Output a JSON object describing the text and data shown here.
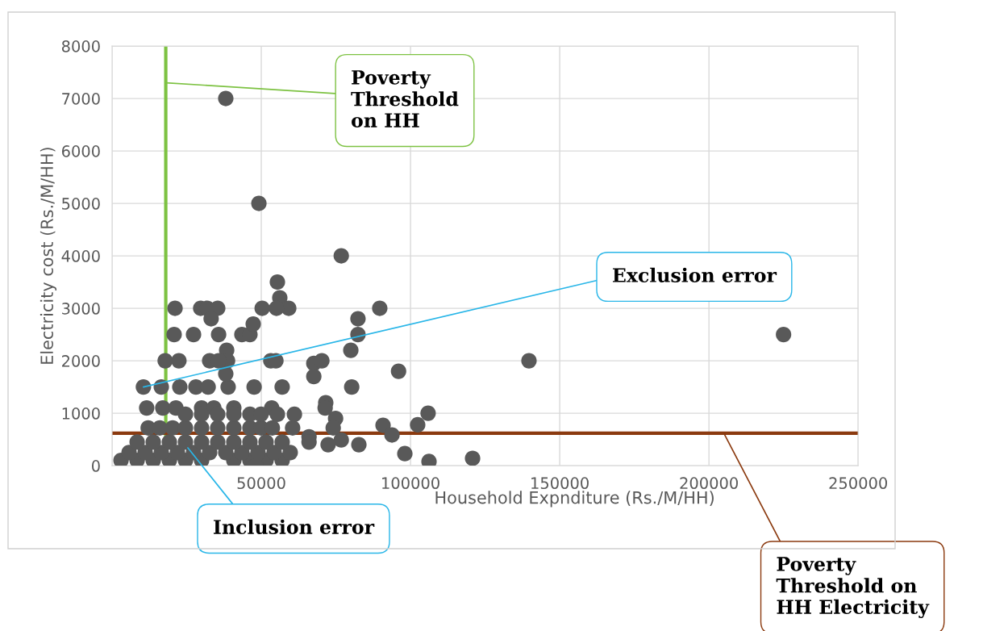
{
  "chart_data": {
    "type": "scatter",
    "xlabel": "Household Expnditure (Rs./M/HH)",
    "ylabel": "Electricity cost (Rs./M/HH)",
    "xlim": [
      0,
      250000
    ],
    "xticks": [
      {
        "value": 0,
        "label": null
      },
      50000,
      100000,
      150000,
      200000,
      250000
    ],
    "ylim": [
      0,
      8000
    ],
    "yticks": [
      0,
      1000,
      2000,
      3000,
      4000,
      5000,
      6000,
      7000,
      8000
    ],
    "grid": true,
    "legend": false,
    "marker": "circle",
    "series": [
      {
        "color": "#595959",
        "x": [
          38100,
          49200,
          76800,
          55400,
          56200,
          225000,
          139700,
          89700,
          82400,
          82400,
          80000,
          67600,
          70300,
          67600,
          96000,
          80300,
          71600,
          74900,
          90800,
          102400,
          105900,
          93800,
          82700,
          76800,
          72400,
          98100,
          106200,
          120800,
          66000,
          59200,
          50300,
          55100,
          43500,
          46200,
          47300,
          35700,
          29700,
          31900,
          35400,
          21100,
          33200,
          20800,
          27300,
          38400,
          38700,
          53200,
          54900,
          32700,
          35700,
          22400,
          17800,
          10500,
          16500,
          22700,
          28100,
          32200,
          38900,
          47600,
          57000,
          11600,
          17000,
          21400,
          30000,
          34100,
          40800,
          53500,
          71400,
          38100,
          3000,
          8400,
          13800,
          19200,
          24600,
          30000,
          40800,
          46200,
          51600,
          57000,
          5700,
          11100,
          16500,
          21900,
          27300,
          32700,
          38100,
          43500,
          48900,
          54300,
          59700,
          8400,
          13800,
          19200,
          24600,
          30000,
          35400,
          40800,
          46200,
          51600,
          57000,
          66000,
          12100,
          16000,
          20300,
          24600,
          30000,
          35400,
          40800,
          46200,
          49900,
          53700,
          60500,
          74100,
          24600,
          30000,
          35400,
          40800,
          46200,
          49900,
          55400,
          61100,
          48100
        ],
        "values": [
          7000,
          5000,
          4000,
          3500,
          3200,
          2500,
          2000,
          3000,
          2800,
          2500,
          2200,
          1950,
          2000,
          1700,
          1800,
          1500,
          1200,
          900,
          770,
          780,
          1000,
          585,
          400,
          490,
          400,
          230,
          80,
          140,
          550,
          3000,
          3000,
          3000,
          2500,
          2500,
          2700,
          2500,
          3000,
          3000,
          3000,
          3000,
          2800,
          2500,
          2500,
          2200,
          2000,
          2000,
          2000,
          2000,
          2000,
          2000,
          2000,
          1500,
          1500,
          1500,
          1500,
          1500,
          1500,
          1500,
          1500,
          1100,
          1100,
          1100,
          1100,
          1100,
          1100,
          1100,
          1100,
          1750,
          100,
          100,
          100,
          100,
          100,
          100,
          100,
          100,
          100,
          100,
          250,
          250,
          250,
          250,
          250,
          250,
          250,
          250,
          250,
          250,
          250,
          450,
          450,
          450,
          450,
          450,
          450,
          450,
          450,
          450,
          450,
          450,
          720,
          720,
          720,
          720,
          720,
          720,
          720,
          720,
          720,
          720,
          720,
          720,
          980,
          980,
          980,
          980,
          980,
          980,
          980,
          980,
          0
        ]
      }
    ],
    "ref_lines": [
      {
        "axis": "x",
        "value": 18000,
        "color": "#7dc242"
      },
      {
        "axis": "y",
        "value": 620,
        "color": "#8b3a0f"
      }
    ],
    "annotations": [
      {
        "text": "Poverty\nThreshold\non HH",
        "x": 18000,
        "y": 7300
      },
      {
        "text": "Poverty\nThreshold on\nHH Electricity",
        "x": 205000,
        "y": 620
      },
      {
        "text": "Exclusion error",
        "x": 10500,
        "y": 1500
      },
      {
        "text": "Inclusion error",
        "x": 25400,
        "y": 340
      }
    ]
  }
}
